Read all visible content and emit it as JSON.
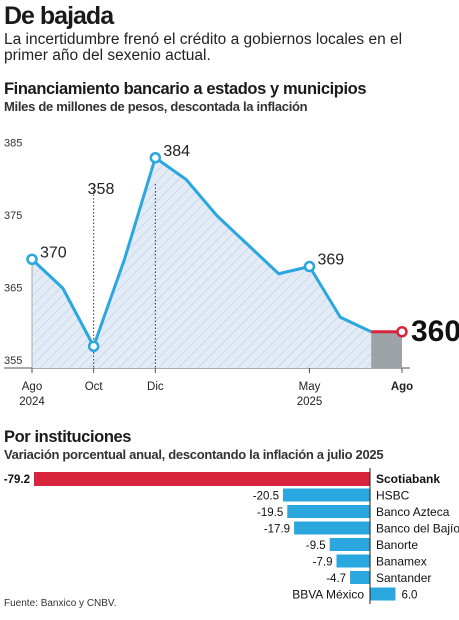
{
  "header": {
    "headline": "De bajada",
    "dek": "La incertidumbre frenó el crédito a gobiernos locales en el primer año del sexenio actual."
  },
  "source": "Fuente: Banxico y CNBV.",
  "colors": {
    "line": "#2aa7df",
    "area_fill": "#e3ecf6",
    "last_segment": "#d8243c",
    "highlight_area": "#9ea3a8",
    "bar_negative_highlight": "#d8243c",
    "bar_default": "#2aa7df"
  },
  "chart_data": [
    {
      "type": "area",
      "title": "Financiamiento bancario a estados y municipios",
      "subtitle": "Miles de millones de pesos, descontada la inflación",
      "yticks": [
        355,
        365,
        375,
        385
      ],
      "ylim": [
        355,
        387
      ],
      "x": [
        "Ago 2024",
        "Sep 2024",
        "Oct 2024",
        "Nov 2024",
        "Dic 2024",
        "Ene 2025",
        "Feb 2025",
        "Mar 2025",
        "Abr 2025",
        "May 2025",
        "Jun 2025",
        "Jul 2025",
        "Ago 2025"
      ],
      "values": [
        370,
        366,
        358,
        370,
        384,
        381,
        376,
        372,
        368,
        369,
        362,
        360,
        360
      ],
      "x_tick_labels": [
        {
          "index": 0,
          "line1": "Ago",
          "line2": "2024"
        },
        {
          "index": 2,
          "line1": "Oct",
          "line2": ""
        },
        {
          "index": 4,
          "line1": "Dic",
          "line2": ""
        },
        {
          "index": 9,
          "line1": "May",
          "line2": "2025"
        },
        {
          "index": 12,
          "line1": "Ago",
          "line2": ""
        }
      ],
      "value_labels": [
        {
          "index": 0,
          "text": "370"
        },
        {
          "index": 2,
          "text": "358"
        },
        {
          "index": 4,
          "text": "384"
        },
        {
          "index": 9,
          "text": "369"
        },
        {
          "index": 12,
          "text": "360"
        }
      ],
      "guide_lines_at": [
        2,
        4
      ],
      "grid": false
    },
    {
      "type": "bar",
      "orientation": "horizontal",
      "title": "Por instituciones",
      "subtitle": "Variación porcentual anual, descontando la inflación a julio 2025",
      "categories": [
        "Scotiabank",
        "HSBC",
        "Banco Azteca",
        "Banco del Bajío",
        "Banorte",
        "Banamex",
        "Santander",
        "BBVA México"
      ],
      "values": [
        -79.2,
        -20.5,
        -19.5,
        -17.9,
        -9.5,
        -7.9,
        -4.7,
        6.0
      ],
      "value_labels": [
        "-79.2",
        "-20.5",
        "-19.5",
        "-17.9",
        "-9.5",
        "-7.9",
        "-4.7",
        "6.0"
      ],
      "highlight_category": "Scotiabank"
    }
  ]
}
